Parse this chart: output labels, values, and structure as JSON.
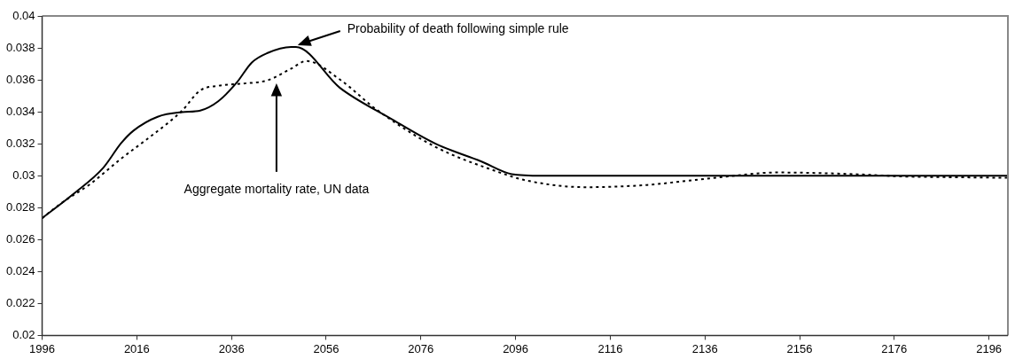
{
  "chart_data": {
    "type": "line",
    "legend": false,
    "grid": false,
    "marker": "none",
    "xlim": [
      1996,
      2200
    ],
    "xticks": [
      1996,
      2016,
      2036,
      2056,
      2076,
      2096,
      2116,
      2136,
      2156,
      2176,
      2196
    ],
    "ylim": [
      0.02,
      0.04
    ],
    "yticks": [
      0.02,
      0.022,
      0.024,
      0.026,
      0.028,
      0.03,
      0.032,
      0.034,
      0.036,
      0.038,
      0.04
    ],
    "series": [
      {
        "color": "#000000",
        "line_style": "solid",
        "x": [
          1996,
          2002.5,
          2008.9,
          2012.7,
          2015.3,
          2020.4,
          2025.6,
          2029.4,
          2033.2,
          2037.1,
          2040.3,
          2043.5,
          2048.6,
          2049.6,
          2058.9,
          2069.5,
          2079.1,
          2088.7,
          2095.2,
          2101.6,
          2150,
          2200
        ],
        "values": [
          0.02734,
          0.02883,
          0.03049,
          0.03204,
          0.03282,
          0.03369,
          0.03398,
          0.03408,
          0.03466,
          0.03583,
          0.03709,
          0.03767,
          0.03806,
          0.03806,
          0.0355,
          0.0336,
          0.032,
          0.0309,
          0.0301,
          0.03,
          0.03,
          0.03
        ]
      },
      {
        "color": "#000000",
        "line_style": "dotted",
        "x": [
          1996,
          1999.9,
          2006.3,
          2012.7,
          2017.9,
          2023,
          2025.6,
          2029.4,
          2033.2,
          2038.4,
          2043.5,
          2048.6,
          2051.8,
          2058.9,
          2066.5,
          2079.1,
          2091.7,
          2098.3,
          2110.9,
          2123.8,
          2132,
          2140.2,
          2151,
          2160.8,
          2170.4,
          2176.8,
          2189.6,
          2199.8
        ],
        "values": [
          0.02734,
          0.02825,
          0.02951,
          0.03107,
          0.03223,
          0.0334,
          0.03408,
          0.03534,
          0.03563,
          0.03577,
          0.03596,
          0.0367,
          0.03718,
          0.03602,
          0.03417,
          0.0318,
          0.0303,
          0.0297,
          0.02928,
          0.02942,
          0.02967,
          0.02993,
          0.0302,
          0.03016,
          0.03006,
          0.02996,
          0.0299,
          0.02987
        ]
      }
    ],
    "annotations": [
      {
        "text": "Probability of death following simple rule",
        "x": 2049.6,
        "y": 0.03806
      },
      {
        "text": "Aggregate mortality rate, UN data",
        "x": 2045.5,
        "y": 0.0359
      }
    ]
  }
}
